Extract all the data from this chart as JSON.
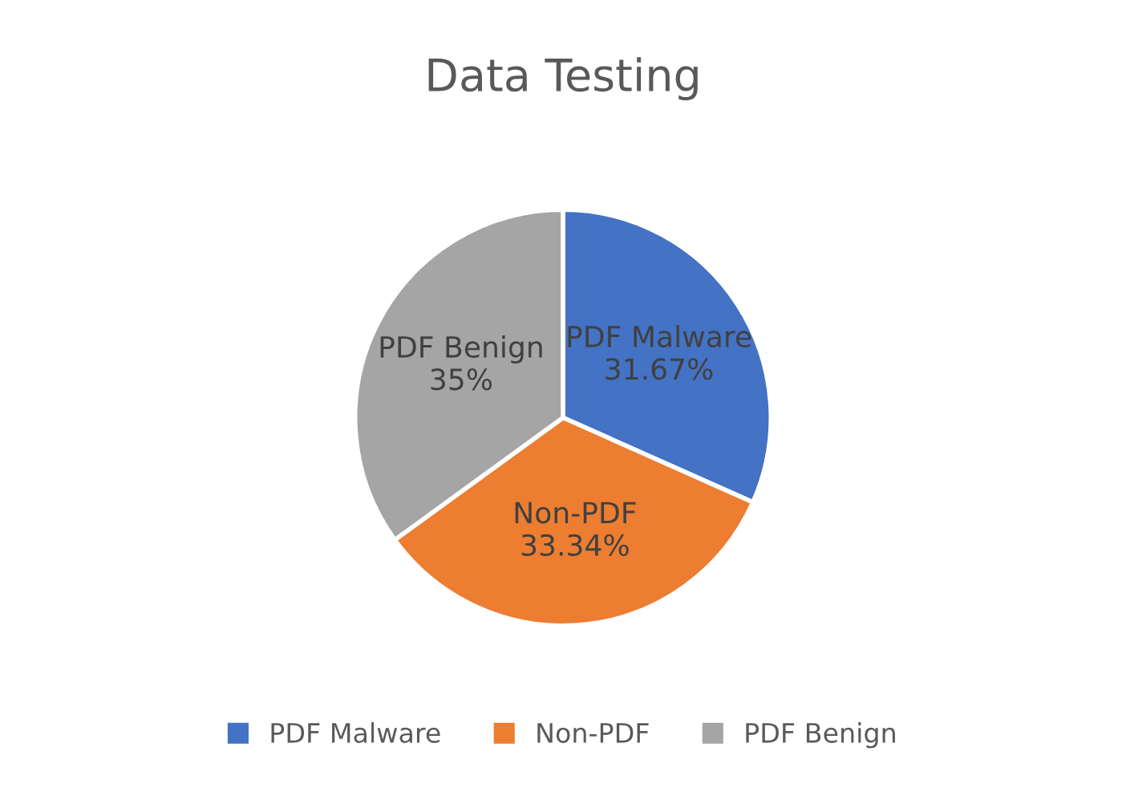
{
  "chart_data": {
    "type": "pie",
    "title": "Data Testing",
    "categories": [
      "PDF Malware",
      "Non-PDF",
      "PDF Benign"
    ],
    "values": [
      31.67,
      33.34,
      35
    ],
    "value_labels": [
      "31.67%",
      "33.34%",
      "35%"
    ],
    "colors": [
      "#4472c4",
      "#ed7d31",
      "#a5a5a5"
    ],
    "legend": "bottom"
  }
}
